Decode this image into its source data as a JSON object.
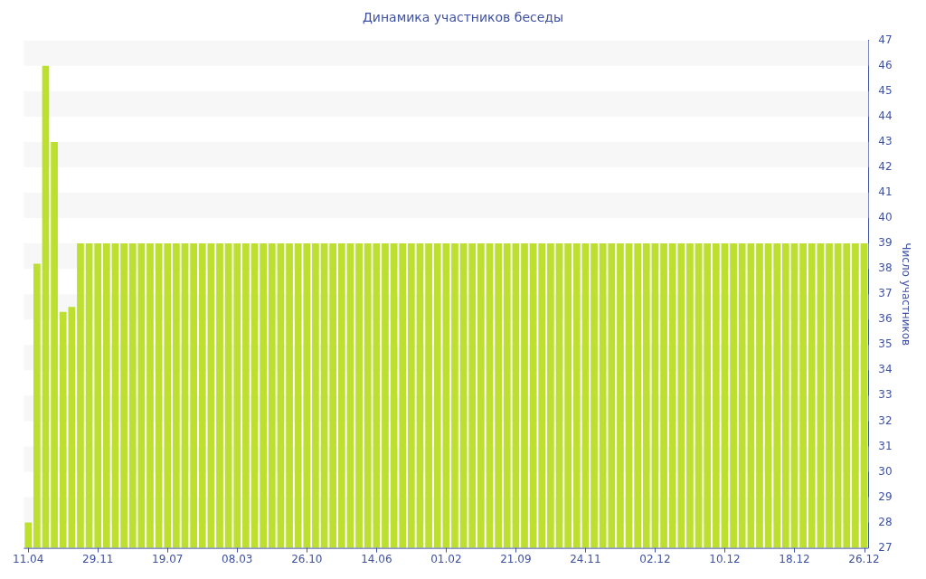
{
  "chart_data": {
    "type": "bar",
    "title": "Динамика участников беседы",
    "ylabel": "Число участников",
    "color": "#bddf2f",
    "categories": [
      "11.04",
      null,
      null,
      null,
      null,
      null,
      null,
      null,
      "29.11",
      null,
      null,
      null,
      null,
      null,
      null,
      null,
      "19.07",
      null,
      null,
      null,
      null,
      null,
      null,
      null,
      "08.03",
      null,
      null,
      null,
      null,
      null,
      null,
      null,
      "26.10",
      null,
      null,
      null,
      null,
      null,
      null,
      null,
      "14.06",
      null,
      null,
      null,
      null,
      null,
      null,
      null,
      "01.02",
      null,
      null,
      null,
      null,
      null,
      null,
      null,
      "21.09",
      null,
      null,
      null,
      null,
      null,
      null,
      null,
      "24.11",
      null,
      null,
      null,
      null,
      null,
      null,
      null,
      "02.12",
      null,
      null,
      null,
      null,
      null,
      null,
      null,
      "10.12",
      null,
      null,
      null,
      null,
      null,
      null,
      null,
      "18.12",
      null,
      null,
      null,
      null,
      null,
      null,
      null,
      "26.12"
    ],
    "values": [
      28,
      38.2,
      46,
      43,
      36.3,
      36.5,
      39,
      39,
      39,
      39,
      39,
      39,
      39,
      39,
      39,
      39,
      39,
      39,
      39,
      39,
      39,
      39,
      39,
      39,
      39,
      39,
      39,
      39,
      39,
      39,
      39,
      39,
      39,
      39,
      39,
      39,
      39,
      39,
      39,
      39,
      39,
      39,
      39,
      39,
      39,
      39,
      39,
      39,
      39,
      39,
      39,
      39,
      39,
      39,
      39,
      39,
      39,
      39,
      39,
      39,
      39,
      39,
      39,
      39,
      39,
      39,
      39,
      39,
      39,
      39,
      39,
      39,
      39,
      39,
      39,
      39,
      39,
      39,
      39,
      39,
      39,
      39,
      39,
      39,
      39,
      39,
      39,
      39,
      39,
      39,
      39,
      39,
      39,
      39,
      39,
      39,
      39
    ],
    "ylim": [
      27,
      47
    ],
    "yticks": [
      27,
      28,
      29,
      30,
      31,
      32,
      33,
      34,
      35,
      36,
      37,
      38,
      39,
      40,
      41,
      42,
      43,
      44,
      45,
      46,
      47
    ],
    "legend": false,
    "bands": [
      {
        "axis": "y",
        "from": 46,
        "to": 47,
        "color": "#f7f7f7"
      },
      {
        "axis": "y",
        "from": 44,
        "to": 45,
        "color": "#f7f7f7"
      },
      {
        "axis": "y",
        "from": 42,
        "to": 43,
        "color": "#f7f7f7"
      },
      {
        "axis": "y",
        "from": 40,
        "to": 41,
        "color": "#f7f7f7"
      },
      {
        "axis": "y",
        "from": 38,
        "to": 39,
        "color": "#f7f7f7"
      },
      {
        "axis": "y",
        "from": 36,
        "to": 37,
        "color": "#f7f7f7"
      },
      {
        "axis": "y",
        "from": 34,
        "to": 35,
        "color": "#f7f7f7"
      },
      {
        "axis": "y",
        "from": 32,
        "to": 33,
        "color": "#f7f7f7"
      },
      {
        "axis": "y",
        "from": 30,
        "to": 31,
        "color": "#f7f7f7"
      },
      {
        "axis": "y",
        "from": 28,
        "to": 29,
        "color": "#f7f7f7"
      }
    ]
  }
}
